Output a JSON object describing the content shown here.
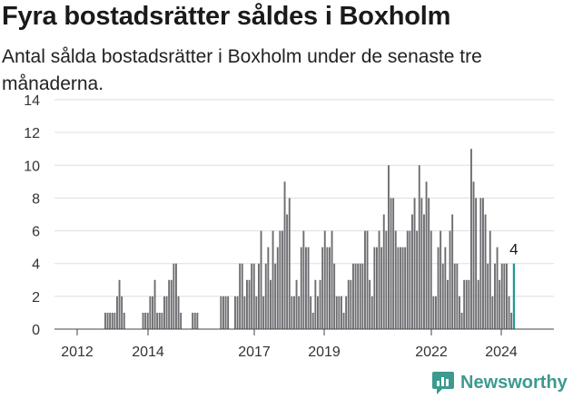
{
  "title": "Fyra bostadsrätter såldes i Boxholm",
  "subtitle": "Antal sålda bostadsrätter i Boxholm under de senaste tre månaderna.",
  "brand": "Newsworthy",
  "colors": {
    "bar": "#6e6e72",
    "highlight": "#1e9c92",
    "grid": "#dedede",
    "brand": "#3d9a8f"
  },
  "chart_data": {
    "type": "bar",
    "xlabel": "",
    "ylabel": "",
    "ylim": [
      0,
      14
    ],
    "yticks": [
      0,
      2,
      4,
      6,
      8,
      10,
      12,
      14
    ],
    "xticks": [
      "2012",
      "2014",
      "2017",
      "2019",
      "2022",
      "2024"
    ],
    "grid": true,
    "annotation": "4",
    "highlight": "last",
    "values": [
      0,
      0,
      0,
      0,
      0,
      0,
      0,
      0,
      0,
      0,
      0,
      0,
      0,
      0,
      0,
      0,
      0,
      0,
      0,
      0,
      1,
      1,
      1,
      1,
      1,
      2,
      3,
      2,
      1,
      0,
      0,
      0,
      0,
      0,
      0,
      0,
      1,
      1,
      1,
      2,
      2,
      3,
      1,
      1,
      1,
      2,
      2,
      3,
      3,
      4,
      4,
      2,
      1,
      0,
      0,
      0,
      0,
      1,
      1,
      1,
      0,
      0,
      0,
      0,
      0,
      0,
      0,
      0,
      0,
      2,
      2,
      2,
      2,
      0,
      0,
      2,
      2,
      4,
      4,
      2,
      3,
      3,
      4,
      4,
      2,
      4,
      6,
      2,
      4,
      5,
      3,
      6,
      4,
      5,
      6,
      6,
      9,
      7,
      8,
      2,
      2,
      3,
      2,
      5,
      6,
      5,
      5,
      2,
      1,
      3,
      2,
      3,
      5,
      6,
      5,
      5,
      6,
      4,
      2,
      2,
      2,
      1,
      2,
      3,
      3,
      4,
      4,
      4,
      4,
      4,
      6,
      6,
      3,
      2,
      5,
      5,
      6,
      5,
      7,
      6,
      10,
      8,
      8,
      6,
      5,
      5,
      5,
      5,
      6,
      6,
      7,
      8,
      6,
      10,
      8,
      7,
      9,
      8,
      6,
      2,
      2,
      5,
      6,
      4,
      5,
      3,
      6,
      7,
      4,
      4,
      2,
      1,
      3,
      3,
      3,
      11,
      9,
      8,
      3,
      8,
      8,
      7,
      4,
      6,
      2,
      4,
      5,
      3,
      4,
      4,
      4,
      2,
      1,
      4
    ]
  }
}
